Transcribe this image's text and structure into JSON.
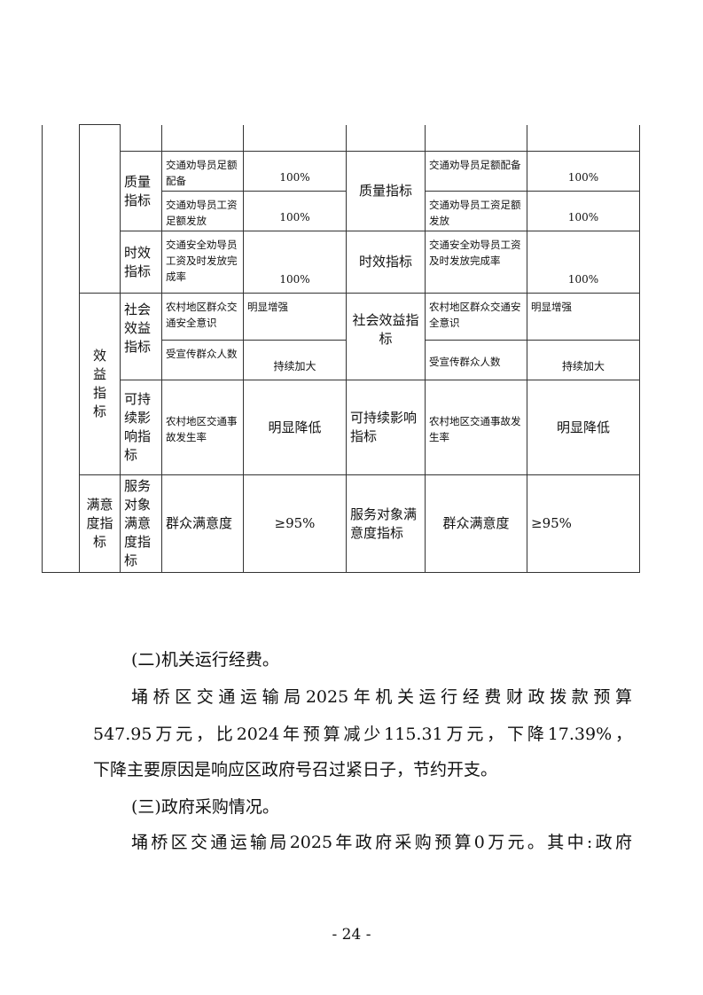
{
  "table": {
    "quality": {
      "label": "质量指标",
      "rows": [
        {
          "indicator_a": "交通劝导员足额配备",
          "value_a": "100%",
          "indicator_b": "交通劝导员足额配备",
          "value_b": "100%"
        },
        {
          "indicator_a": "交通劝导员工资足额发放",
          "value_a": "100%",
          "indicator_b": "交通劝导员工资足额发放",
          "value_b": "100%"
        }
      ]
    },
    "timeliness": {
      "label": "时效指标",
      "indicator_a": "交通安全劝导员工资及时发放完成率",
      "value_a": "100%",
      "indicator_b": "交通安全劝导员工资及时发放完成率",
      "value_b": "100%"
    },
    "benefit": {
      "label": "效益指标",
      "social": {
        "label": "社会效益指标",
        "rows": [
          {
            "indicator_a": "农村地区群众交通安全意识",
            "value_a": "明显增强",
            "indicator_b": "农村地区群众交通安全意识",
            "value_b": "明显增强"
          },
          {
            "indicator_a": "受宣传群众人数",
            "value_a": "持续加大",
            "indicator_b": "受宣传群众人数",
            "value_b": "持续加大"
          }
        ]
      },
      "sustain": {
        "label": "可持续影响指标",
        "indicator_a": "农村地区交通事故发生率",
        "value_a": "明显降低",
        "indicator_b": "农村地区交通事故发生率",
        "value_b": "明显降低"
      }
    },
    "satisfaction": {
      "label": "满意度指标",
      "sub": "服务对象满意度指标",
      "indicator_a": "群众满意度",
      "value_a": "≥95%",
      "indicator_b": "群众满意度",
      "value_b": "≥95%"
    }
  },
  "body": {
    "heading2": "(二)机关运行经费。",
    "para1_l1": "埇桥区交通运输局2025年机关运行经费财政拨款预算",
    "para1_l2": "547.95万元，比2024年预算减少115.31万元，下降17.39%，",
    "para1_l3": "下降主要原因是响应区政府号召过紧日子，节约开支。",
    "heading3": "(三)政府采购情况。",
    "para2_l1": "埇桥区交通运输局2025年政府采购预算0万元。其中:政府"
  },
  "page_number": "- 24 -"
}
